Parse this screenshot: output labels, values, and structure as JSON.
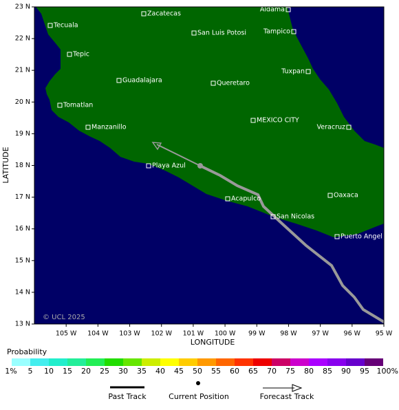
{
  "map": {
    "xlabel": "LONGITUDE",
    "ylabel": "LATITUDE",
    "xlim": [
      -106,
      -95
    ],
    "ylim": [
      13,
      23
    ],
    "xticks": [
      {
        "value": -105,
        "label": "105 W"
      },
      {
        "value": -104,
        "label": "104 W"
      },
      {
        "value": -103,
        "label": "103 W"
      },
      {
        "value": -102,
        "label": "102 W"
      },
      {
        "value": -101,
        "label": "101 W"
      },
      {
        "value": -100,
        "label": "100 W"
      },
      {
        "value": -99,
        "label": "99 W"
      },
      {
        "value": -98,
        "label": "98 W"
      },
      {
        "value": -97,
        "label": "97 W"
      },
      {
        "value": -96,
        "label": "96 W"
      },
      {
        "value": -95,
        "label": "95 W"
      }
    ],
    "yticks": [
      {
        "value": 13,
        "label": "13 N"
      },
      {
        "value": 14,
        "label": "14 N"
      },
      {
        "value": 15,
        "label": "15 N"
      },
      {
        "value": 16,
        "label": "16 N"
      },
      {
        "value": 17,
        "label": "17 N"
      },
      {
        "value": 18,
        "label": "18 N"
      },
      {
        "value": 19,
        "label": "19 N"
      },
      {
        "value": 20,
        "label": "20 N"
      },
      {
        "value": 21,
        "label": "21 N"
      },
      {
        "value": 22,
        "label": "22 N"
      },
      {
        "value": 23,
        "label": "23 N"
      }
    ],
    "credit": "© UCL 2025",
    "ocean_color": "#000066",
    "land_color": "#006600",
    "cities": [
      "Aldama",
      "Zacatecas",
      "Tecuala",
      "San Luis Potosi",
      "Tampico",
      "Tepic",
      "Tuxpan",
      "Guadalajara",
      "Queretaro",
      "Tomatlan",
      "MEXICO CITY",
      "Veracruz",
      "Manzanillo",
      "Playa Azul",
      "Acapulco",
      "Oaxaca",
      "San Nicolas",
      "Puerto Angel"
    ]
  },
  "legend": {
    "title": "Probability",
    "colors": [
      "#99ffff",
      "#44eeee",
      "#22eecc",
      "#22ee99",
      "#22ee55",
      "#22dd00",
      "#66e600",
      "#ccee00",
      "#ffff00",
      "#ffcc00",
      "#ff9900",
      "#ff6600",
      "#ff3300",
      "#ee0000",
      "#cc0066",
      "#cc00cc",
      "#aa00ff",
      "#8800ee",
      "#6600cc",
      "#660077"
    ],
    "labels": [
      "1%",
      "5",
      "10",
      "15",
      "20",
      "25",
      "30",
      "35",
      "40",
      "45",
      "50",
      "55",
      "60",
      "65",
      "70",
      "75",
      "80",
      "85",
      "90",
      "95",
      "100%"
    ],
    "items": [
      "Past Track",
      "Current Position",
      "Forecast Track"
    ]
  }
}
